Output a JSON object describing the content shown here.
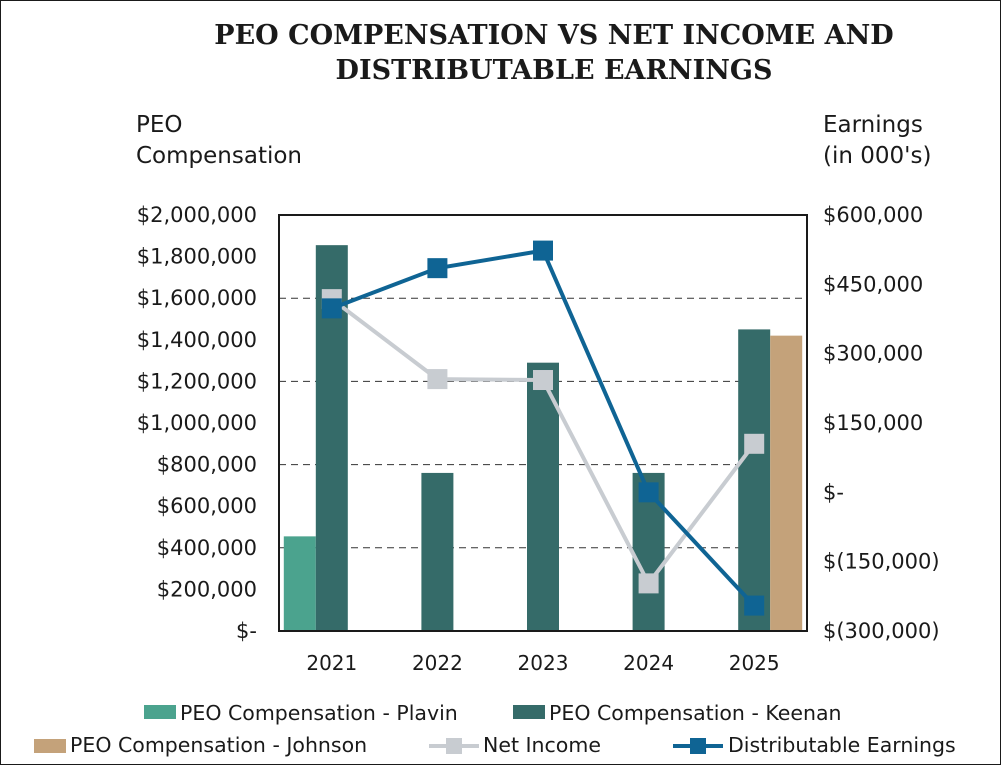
{
  "chart_data": {
    "type": "bar",
    "title_lines": [
      "PEO COMPENSATION VS NET INCOME AND",
      "DISTRIBUTABLE EARNINGS"
    ],
    "left_axis_title": [
      "PEO",
      "Compensation"
    ],
    "right_axis_title": [
      "Earnings",
      "(in 000's)"
    ],
    "categories": [
      "2021",
      "2022",
      "2023",
      "2024",
      "2025"
    ],
    "left_ylim": [
      0,
      2000000
    ],
    "right_ylim": [
      -300000,
      600000
    ],
    "left_ticks": [
      "$-",
      "$200,000",
      "$400,000",
      "$600,000",
      "$800,000",
      "$1,000,000",
      "$1,200,000",
      "$1,400,000",
      "$1,600,000",
      "$1,800,000",
      "$2,000,000"
    ],
    "right_ticks": [
      "$(300,000)",
      "$(150,000)",
      "$-",
      "$150,000",
      "$300,000",
      "$450,000",
      "$600,000"
    ],
    "grid": "dashed horizontal",
    "legend_position": "bottom",
    "bar_series": [
      {
        "name": "PEO Compensation - Plavin",
        "color": "#4ba38e",
        "values": [
          455000,
          null,
          null,
          null,
          null
        ]
      },
      {
        "name": "PEO Compensation - Keenan",
        "color": "#356b69",
        "values": [
          1855000,
          760000,
          1290000,
          760000,
          1450000
        ]
      },
      {
        "name": "PEO Compensation - Johnson",
        "color": "#c4a27a",
        "values": [
          null,
          null,
          null,
          null,
          1420000
        ]
      }
    ],
    "line_series": [
      {
        "name": "Net Income",
        "color": "#c8ccd1",
        "values": [
          418000,
          245000,
          243000,
          -197000,
          105000
        ]
      },
      {
        "name": "Distributable Earnings",
        "color": "#0f6494",
        "values": [
          398000,
          485000,
          523000,
          0,
          -245000
        ]
      }
    ]
  }
}
